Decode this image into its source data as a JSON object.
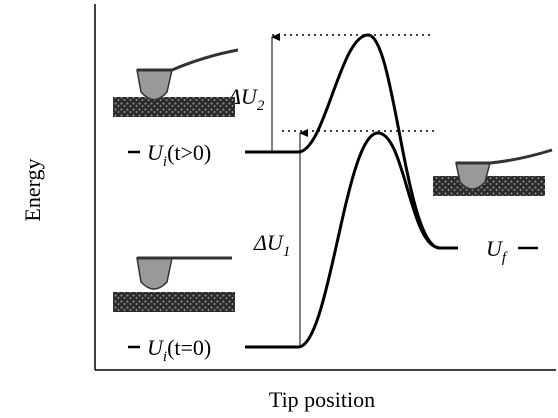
{
  "axes": {
    "y_label": "Energy",
    "x_label": "Tip position"
  },
  "barriers": [
    {
      "symbol": "ΔU",
      "sub": "2"
    },
    {
      "symbol": "ΔU",
      "sub": "1"
    }
  ],
  "levels": [
    {
      "main": "U",
      "sub": "i",
      "rest": "(t>0)"
    },
    {
      "main": "U",
      "sub": "i",
      "rest": "(t=0)"
    },
    {
      "main": "U",
      "sub": "f"
    }
  ]
}
